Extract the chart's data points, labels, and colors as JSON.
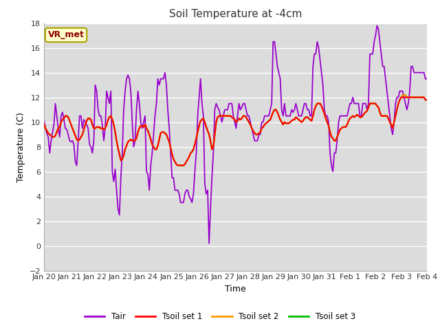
{
  "title": "Soil Temperature at -4cm",
  "xlabel": "Time",
  "ylabel": "Temperature (C)",
  "ylim": [
    -2,
    18
  ],
  "yticks": [
    -2,
    0,
    2,
    4,
    6,
    8,
    10,
    12,
    14,
    16,
    18
  ],
  "xtick_labels": [
    "Jan 20",
    "Jan 21",
    "Jan 22",
    "Jan 23",
    "Jan 24",
    "Jan 25",
    "Jan 26",
    "Jan 27",
    "Jan 28",
    "Jan 29",
    "Jan 30",
    "Jan 31",
    "Feb 1",
    "Feb 2",
    "Feb 3",
    "Feb 4"
  ],
  "bg_color": "#dcdcdc",
  "annotation_text": "VR_met",
  "annotation_bg": "#ffffcc",
  "annotation_border": "#aaa000",
  "annotation_text_color": "#8B0000",
  "colors": {
    "Tair": "#9900cc",
    "Tsoil1": "#ff0000",
    "Tsoil2": "#ff9900",
    "Tsoil3": "#00bb00"
  },
  "legend_labels": [
    "Tair",
    "Tsoil set 1",
    "Tsoil set 2",
    "Tsoil set 3"
  ],
  "Tair": [
    10.3,
    9.5,
    9.1,
    8.8,
    7.5,
    8.5,
    9.2,
    9.8,
    11.5,
    10.5,
    9.5,
    8.8,
    10.5,
    10.8,
    10.2,
    9.5,
    9.4,
    9.0,
    8.5,
    8.4,
    8.5,
    8.2,
    6.8,
    6.5,
    8.5,
    10.5,
    10.5,
    9.5,
    10.2,
    10.0,
    9.8,
    9.5,
    8.2,
    8.0,
    7.5,
    8.5,
    13.0,
    12.5,
    11.0,
    10.5,
    10.5,
    9.8,
    8.5,
    9.5,
    12.5,
    12.0,
    11.5,
    12.5,
    6.0,
    5.2,
    6.2,
    4.5,
    3.0,
    2.5,
    5.5,
    7.5,
    11.0,
    12.5,
    13.5,
    13.8,
    13.5,
    12.5,
    10.0,
    8.0,
    8.5,
    11.0,
    12.5,
    11.5,
    10.0,
    9.5,
    10.0,
    10.5,
    6.0,
    5.8,
    4.5,
    6.5,
    7.5,
    9.0,
    10.5,
    11.5,
    13.5,
    13.0,
    13.5,
    13.5,
    13.5,
    14.0,
    13.0,
    11.0,
    9.5,
    7.5,
    5.5,
    5.5,
    4.5,
    4.5,
    4.5,
    4.2,
    3.5,
    3.5,
    3.5,
    4.2,
    4.5,
    4.5,
    4.0,
    3.8,
    3.5,
    4.2,
    6.0,
    7.5,
    10.5,
    12.0,
    13.5,
    11.5,
    10.5,
    5.0,
    4.2,
    4.5,
    0.2,
    3.0,
    5.5,
    7.5,
    11.0,
    11.5,
    11.2,
    11.0,
    10.5,
    10.0,
    10.5,
    11.0,
    11.0,
    11.0,
    11.5,
    11.5,
    11.5,
    10.5,
    10.0,
    9.5,
    10.5,
    11.5,
    11.0,
    11.2,
    11.5,
    11.5,
    11.0,
    10.5,
    10.5,
    10.0,
    9.5,
    9.0,
    8.5,
    8.5,
    8.5,
    9.0,
    9.0,
    10.0,
    10.0,
    10.5,
    10.5,
    10.5,
    10.5,
    11.0,
    11.5,
    16.5,
    16.5,
    15.5,
    14.5,
    14.0,
    13.5,
    11.0,
    10.5,
    11.5,
    10.5,
    10.5,
    10.5,
    10.5,
    11.0,
    10.8,
    11.0,
    11.5,
    11.0,
    10.5,
    10.5,
    10.5,
    11.0,
    11.5,
    11.5,
    11.0,
    11.0,
    10.5,
    10.5,
    14.5,
    15.5,
    15.5,
    16.5,
    16.0,
    15.0,
    14.0,
    13.0,
    11.0,
    10.5,
    10.5,
    10.0,
    7.5,
    6.5,
    6.0,
    7.5,
    7.5,
    8.5,
    10.0,
    10.5,
    10.5,
    10.5,
    10.5,
    10.5,
    10.5,
    11.0,
    11.5,
    11.5,
    12.0,
    11.5,
    11.5,
    11.5,
    11.5,
    10.5,
    10.5,
    11.5,
    11.5,
    11.5,
    11.0,
    11.5,
    15.5,
    15.5,
    15.5,
    16.5,
    17.0,
    17.8,
    17.5,
    16.5,
    15.5,
    14.5,
    14.5,
    13.5,
    12.5,
    11.5,
    10.5,
    9.5,
    9.0,
    10.0,
    11.5,
    12.0,
    12.0,
    12.5,
    12.5,
    12.5,
    12.0,
    11.5,
    11.0,
    11.5,
    12.5,
    14.5,
    14.5,
    14.0,
    14.0,
    14.0,
    14.0,
    14.0,
    14.0,
    14.0,
    14.0,
    13.5,
    13.5
  ],
  "Tsoil1": [
    9.8,
    9.5,
    9.3,
    9.1,
    9.0,
    8.9,
    8.8,
    8.8,
    8.9,
    9.2,
    9.5,
    9.6,
    10.0,
    10.2,
    10.3,
    10.5,
    10.5,
    10.4,
    10.1,
    9.8,
    9.5,
    9.2,
    8.9,
    8.6,
    8.5,
    8.6,
    8.8,
    9.0,
    9.4,
    9.8,
    10.1,
    10.3,
    10.3,
    10.2,
    9.8,
    9.5,
    9.5,
    9.6,
    9.6,
    9.6,
    9.5,
    9.5,
    9.4,
    9.5,
    9.8,
    10.2,
    10.4,
    10.5,
    10.2,
    9.8,
    9.2,
    8.5,
    7.9,
    7.4,
    6.9,
    7.0,
    7.3,
    7.8,
    8.1,
    8.4,
    8.5,
    8.6,
    8.5,
    8.5,
    8.5,
    8.7,
    9.2,
    9.5,
    9.7,
    9.7,
    9.6,
    9.8,
    9.5,
    9.3,
    9.0,
    8.6,
    8.2,
    8.0,
    7.8,
    7.8,
    8.1,
    8.6,
    9.1,
    9.2,
    9.2,
    9.1,
    9.0,
    8.7,
    8.4,
    7.9,
    7.4,
    7.0,
    6.8,
    6.6,
    6.5,
    6.5,
    6.5,
    6.5,
    6.5,
    6.6,
    6.8,
    7.0,
    7.2,
    7.5,
    7.6,
    7.8,
    8.2,
    8.7,
    9.2,
    9.7,
    10.1,
    10.2,
    10.3,
    10.0,
    9.6,
    9.3,
    9.0,
    8.5,
    7.8,
    8.0,
    9.0,
    10.0,
    10.4,
    10.5,
    10.5,
    10.5,
    10.5,
    10.5,
    10.5,
    10.5,
    10.5,
    10.5,
    10.4,
    10.3,
    10.2,
    10.0,
    10.1,
    10.3,
    10.2,
    10.3,
    10.5,
    10.5,
    10.4,
    10.2,
    10.0,
    9.8,
    9.5,
    9.3,
    9.1,
    9.0,
    9.0,
    9.1,
    9.2,
    9.5,
    9.6,
    9.8,
    9.9,
    10.0,
    10.1,
    10.2,
    10.5,
    10.8,
    11.0,
    11.0,
    10.8,
    10.5,
    10.2,
    10.0,
    9.8,
    10.0,
    9.9,
    9.9,
    9.9,
    10.0,
    10.1,
    10.2,
    10.2,
    10.4,
    10.3,
    10.2,
    10.1,
    10.0,
    10.1,
    10.3,
    10.4,
    10.4,
    10.3,
    10.2,
    10.1,
    10.5,
    11.0,
    11.3,
    11.5,
    11.5,
    11.5,
    11.3,
    11.0,
    10.7,
    10.3,
    10.0,
    9.7,
    9.2,
    8.8,
    8.7,
    8.5,
    8.5,
    8.8,
    9.1,
    9.4,
    9.5,
    9.6,
    9.6,
    9.6,
    9.8,
    10.1,
    10.3,
    10.4,
    10.5,
    10.4,
    10.5,
    10.6,
    10.5,
    10.4,
    10.4,
    10.5,
    10.7,
    10.8,
    10.9,
    11.2,
    11.5,
    11.5,
    11.5,
    11.5,
    11.5,
    11.3,
    11.2,
    10.8,
    10.5,
    10.5,
    10.5,
    10.5,
    10.5,
    10.3,
    10.0,
    9.8,
    9.5,
    10.0,
    10.5,
    11.0,
    11.5,
    11.8,
    12.0,
    12.0,
    12.0,
    12.0,
    12.0,
    12.0,
    12.0,
    12.0,
    12.0,
    12.0,
    12.0,
    12.0,
    12.0,
    12.0,
    12.0,
    12.0,
    12.0,
    11.8,
    11.8
  ],
  "Tsoil2": [
    9.8,
    9.5,
    9.3,
    9.1,
    9.0,
    8.9,
    8.8,
    8.8,
    8.9,
    9.2,
    9.5,
    9.6,
    10.0,
    10.2,
    10.3,
    10.5,
    10.5,
    10.4,
    10.1,
    9.8,
    9.5,
    9.2,
    8.9,
    8.6,
    8.5,
    8.6,
    8.8,
    9.0,
    9.4,
    9.8,
    10.1,
    10.3,
    10.3,
    10.2,
    9.8,
    9.5,
    9.5,
    9.6,
    9.6,
    9.5,
    9.5,
    9.5,
    9.4,
    9.5,
    9.8,
    10.2,
    10.4,
    10.5,
    10.2,
    9.8,
    9.2,
    8.5,
    7.9,
    7.4,
    6.9,
    7.0,
    7.3,
    7.8,
    8.1,
    8.4,
    8.5,
    8.6,
    8.5,
    8.5,
    8.5,
    8.7,
    9.2,
    9.5,
    9.7,
    9.7,
    9.6,
    9.8,
    9.5,
    9.3,
    9.0,
    8.6,
    8.2,
    8.0,
    7.8,
    7.8,
    8.1,
    8.6,
    9.1,
    9.2,
    9.2,
    9.1,
    9.0,
    8.7,
    8.4,
    7.9,
    7.4,
    7.0,
    6.8,
    6.6,
    6.5,
    6.5,
    6.5,
    6.5,
    6.5,
    6.6,
    6.8,
    7.0,
    7.2,
    7.5,
    7.6,
    7.8,
    8.2,
    8.7,
    9.2,
    9.7,
    10.1,
    10.2,
    10.3,
    10.0,
    9.6,
    9.3,
    9.0,
    8.5,
    7.8,
    8.0,
    9.0,
    10.0,
    10.4,
    10.5,
    10.5,
    10.5,
    10.5,
    10.5,
    10.5,
    10.5,
    10.5,
    10.5,
    10.4,
    10.3,
    10.2,
    10.0,
    10.1,
    10.3,
    10.2,
    10.3,
    10.5,
    10.5,
    10.4,
    10.2,
    10.0,
    9.8,
    9.5,
    9.3,
    9.1,
    9.0,
    9.0,
    9.1,
    9.2,
    9.5,
    9.6,
    9.8,
    9.9,
    10.0,
    10.1,
    10.2,
    10.5,
    10.8,
    11.0,
    11.0,
    10.8,
    10.5,
    10.2,
    10.0,
    9.8,
    10.0,
    9.9,
    9.9,
    9.9,
    10.0,
    10.1,
    10.2,
    10.2,
    10.4,
    10.3,
    10.2,
    10.1,
    10.0,
    10.1,
    10.3,
    10.4,
    10.4,
    10.3,
    10.2,
    10.1,
    10.5,
    11.0,
    11.3,
    11.5,
    11.5,
    11.5,
    11.3,
    11.0,
    10.7,
    10.3,
    10.0,
    9.7,
    9.2,
    8.8,
    8.7,
    8.5,
    8.5,
    8.8,
    9.1,
    9.4,
    9.5,
    9.6,
    9.6,
    9.6,
    9.8,
    10.1,
    10.3,
    10.4,
    10.5,
    10.4,
    10.5,
    10.6,
    10.5,
    10.4,
    10.4,
    10.5,
    10.7,
    10.8,
    10.9,
    11.2,
    11.5,
    11.5,
    11.5,
    11.5,
    11.5,
    11.3,
    11.2,
    10.8,
    10.5,
    10.5,
    10.5,
    10.5,
    10.5,
    10.3,
    10.0,
    9.8,
    9.5,
    10.0,
    10.5,
    11.0,
    11.5,
    11.8,
    12.0,
    12.2,
    12.2,
    12.2,
    12.0,
    12.0,
    12.0,
    12.0,
    12.0,
    12.0,
    12.0,
    12.0,
    12.0,
    12.0,
    12.0,
    12.0,
    12.0,
    11.8,
    11.8
  ],
  "Tsoil3": [
    9.8,
    9.5,
    9.3,
    9.1,
    9.0,
    8.9,
    8.8,
    8.8,
    8.9,
    9.2,
    9.5,
    9.6,
    10.0,
    10.2,
    10.3,
    10.5,
    10.5,
    10.4,
    10.1,
    9.8,
    9.5,
    9.2,
    8.9,
    8.6,
    8.5,
    8.6,
    8.8,
    9.0,
    9.4,
    9.8,
    10.1,
    10.3,
    10.3,
    10.2,
    9.8,
    9.5,
    9.5,
    9.6,
    9.6,
    9.5,
    9.5,
    9.5,
    9.4,
    9.5,
    9.8,
    10.2,
    10.4,
    10.5,
    10.2,
    9.8,
    9.2,
    8.5,
    7.9,
    7.4,
    6.9,
    7.0,
    7.3,
    7.8,
    8.1,
    8.4,
    8.5,
    8.6,
    8.5,
    8.5,
    8.5,
    8.7,
    9.2,
    9.5,
    9.7,
    9.7,
    9.6,
    9.8,
    9.5,
    9.3,
    9.0,
    8.6,
    8.2,
    8.0,
    7.8,
    7.8,
    8.1,
    8.6,
    9.1,
    9.2,
    9.2,
    9.1,
    9.0,
    8.7,
    8.4,
    7.9,
    7.4,
    7.0,
    6.8,
    6.6,
    6.5,
    6.5,
    6.5,
    6.5,
    6.5,
    6.6,
    6.8,
    7.0,
    7.2,
    7.5,
    7.6,
    7.8,
    8.2,
    8.7,
    9.2,
    9.7,
    10.1,
    10.2,
    10.3,
    10.0,
    9.6,
    9.3,
    9.0,
    8.5,
    7.8,
    8.0,
    9.0,
    10.0,
    10.4,
    10.5,
    10.5,
    10.5,
    10.5,
    10.5,
    10.5,
    10.5,
    10.5,
    10.5,
    10.4,
    10.3,
    10.2,
    10.0,
    10.1,
    10.3,
    10.2,
    10.3,
    10.5,
    10.5,
    10.4,
    10.2,
    10.0,
    9.8,
    9.5,
    9.3,
    9.1,
    9.0,
    9.0,
    9.1,
    9.2,
    9.5,
    9.6,
    9.8,
    9.9,
    10.0,
    10.1,
    10.2,
    10.5,
    10.8,
    11.0,
    11.0,
    10.8,
    10.5,
    10.2,
    10.0,
    9.8,
    10.0,
    9.9,
    9.9,
    9.9,
    10.0,
    10.1,
    10.2,
    10.2,
    10.4,
    10.3,
    10.2,
    10.1,
    10.0,
    10.1,
    10.3,
    10.4,
    10.4,
    10.3,
    10.2,
    10.1,
    10.5,
    11.0,
    11.3,
    11.5,
    11.5,
    11.5,
    11.3,
    11.0,
    10.7,
    10.3,
    10.0,
    9.7,
    9.2,
    8.8,
    8.7,
    8.5,
    8.5,
    8.8,
    9.1,
    9.4,
    9.5,
    9.6,
    9.6,
    9.6,
    9.8,
    10.1,
    10.3,
    10.4,
    10.5,
    10.4,
    10.5,
    10.6,
    10.5,
    10.4,
    10.4,
    10.5,
    10.7,
    10.8,
    10.9,
    11.2,
    11.5,
    11.5,
    11.5,
    11.5,
    11.5,
    11.3,
    11.2,
    10.8,
    10.5,
    10.5,
    10.5,
    10.5,
    10.5,
    10.3,
    10.0,
    9.8,
    9.5,
    10.0,
    10.5,
    11.0,
    11.5,
    11.8,
    12.0,
    12.2,
    12.2,
    12.2,
    12.0,
    12.0,
    12.0,
    12.0,
    12.0,
    12.0,
    12.0,
    12.0,
    12.0,
    12.0,
    12.0,
    12.0,
    12.0,
    11.8,
    11.8
  ]
}
